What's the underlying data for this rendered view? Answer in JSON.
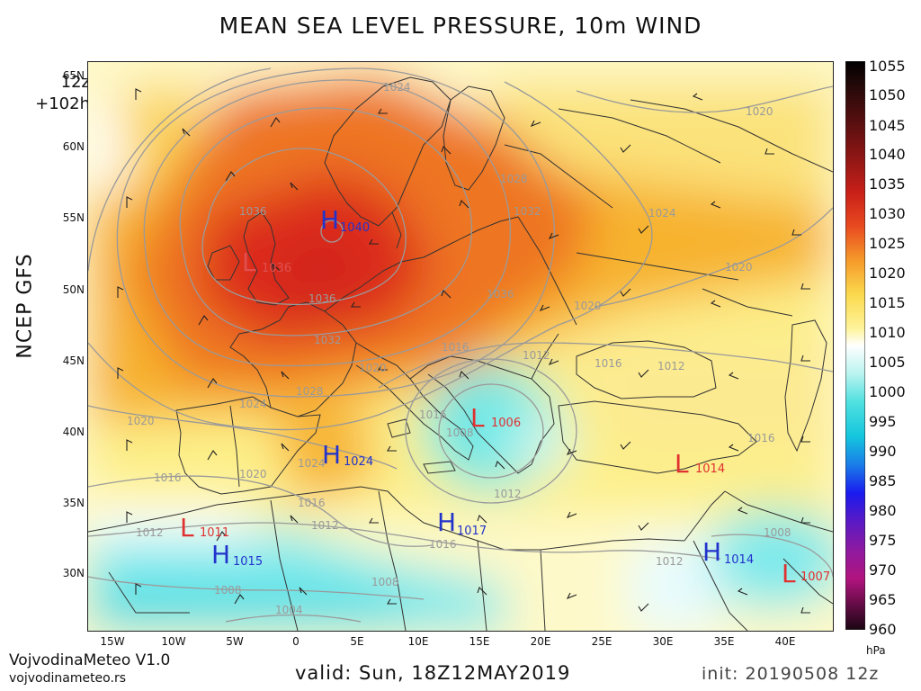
{
  "title": "MEAN SEA LEVEL PRESSURE, 10m WIND",
  "run": {
    "hour": "12z",
    "lead": "+102h"
  },
  "model": "NCEP GFS",
  "latitude_labels": [
    "65N",
    "60N",
    "55N",
    "50N",
    "45N",
    "40N",
    "35N",
    "30N"
  ],
  "longitude_labels": [
    "15W",
    "10W",
    "5W",
    "0",
    "5E",
    "10E",
    "15E",
    "20E",
    "25E",
    "30E",
    "35E",
    "40E"
  ],
  "colorbar": {
    "unit": "hPa",
    "labels": [
      "1055",
      "1050",
      "1045",
      "1040",
      "1035",
      "1030",
      "1025",
      "1020",
      "1015",
      "1010",
      "1005",
      "1000",
      "995",
      "990",
      "985",
      "980",
      "975",
      "970",
      "965",
      "960"
    ]
  },
  "isobar_labels": [
    "1036",
    "1036",
    "1036",
    "1032",
    "1032",
    "1028",
    "1028",
    "1024",
    "1024",
    "1024",
    "1024",
    "1020",
    "1020",
    "1020",
    "1020",
    "1020",
    "1020",
    "1016",
    "1016",
    "1016",
    "1016",
    "1016",
    "1016",
    "1012",
    "1012",
    "1012",
    "1012",
    "1012",
    "1012",
    "1008",
    "1008",
    "1008",
    "1008",
    "1004",
    "1016"
  ],
  "centers": [
    {
      "letter": "H",
      "value": "1040",
      "color": "#2233cc"
    },
    {
      "letter": "L",
      "value": "1036",
      "color": "#e05050"
    },
    {
      "letter": "L",
      "value": "1006",
      "color": "#e03030"
    },
    {
      "letter": "H",
      "value": "1024",
      "color": "#2233cc"
    },
    {
      "letter": "L",
      "value": "1014",
      "color": "#e03030"
    },
    {
      "letter": "L",
      "value": "1011",
      "color": "#e03030"
    },
    {
      "letter": "H",
      "value": "1017",
      "color": "#2233cc"
    },
    {
      "letter": "H",
      "value": "1015",
      "color": "#2233cc"
    },
    {
      "letter": "H",
      "value": "1014",
      "color": "#2233cc"
    },
    {
      "letter": "L",
      "value": "1007",
      "color": "#e03030"
    }
  ],
  "footer": {
    "brand": "VojvodinaMeteo V1.0",
    "site": "vojvodinameteo.rs",
    "valid": "valid: Sun, 18Z12MAY2019",
    "init": "init: 20190508 12z"
  },
  "colors": {
    "high_letter": "#2233cc",
    "low_letter": "#e03030",
    "isobar": "#9a9a9a",
    "coast": "#333333"
  }
}
